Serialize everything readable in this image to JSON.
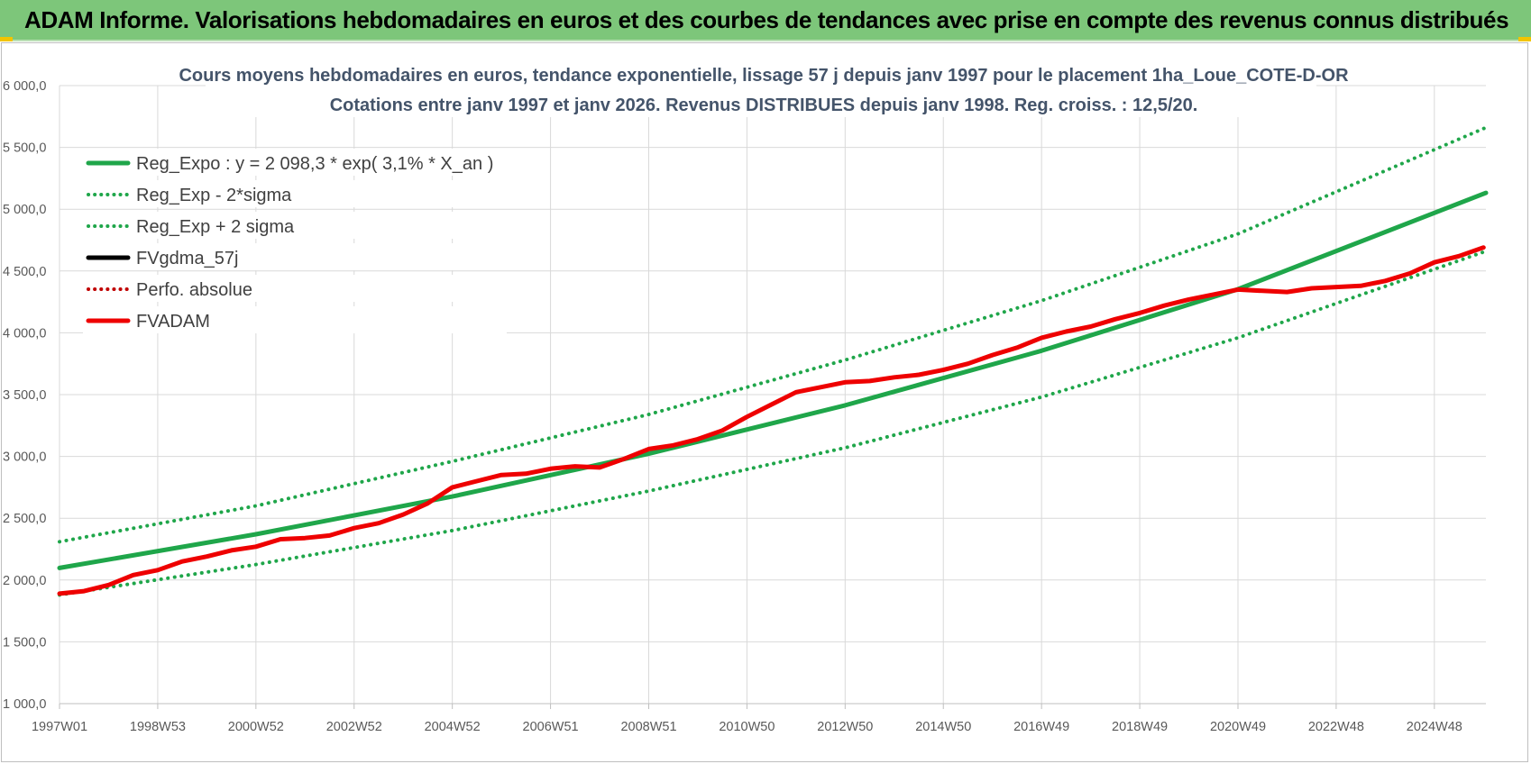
{
  "banner": {
    "title": "ADAM Informe. Valorisations hebdomadaires en euros et des courbes de tendances avec prise en compte des revenus connus distribués"
  },
  "colors": {
    "banner": "#7dc67a",
    "trend": "#1fa64a",
    "fv_adam": "#ee0000",
    "fvgdma": "#000000",
    "perfo": "#c00000",
    "title_text": "#44546a"
  },
  "chart_data": {
    "type": "line",
    "title": "Cours moyens hebdomadaires en euros, tendance exponentielle, lissage 57 j depuis janv 1997  pour le placement 1ha_Loue_COTE-D-OR",
    "subtitle": "Cotations entre janv 1997 et janv 2026. Revenus DISTRIBUES depuis janv 1998.  Reg. croiss. : 12,5/20.",
    "xlabel": "",
    "ylabel": "",
    "ylim": [
      1000,
      6000
    ],
    "xlim": [
      1997.0,
      2026.05
    ],
    "grid": true,
    "legend_position": "top-left",
    "x_ticks": [
      {
        "label": "1997W01",
        "x": 1997.0
      },
      {
        "label": "1998W53",
        "x": 1999.0
      },
      {
        "label": "2000W52",
        "x": 2001.0
      },
      {
        "label": "2002W52",
        "x": 2003.0
      },
      {
        "label": "2004W52",
        "x": 2005.0
      },
      {
        "label": "2006W51",
        "x": 2007.0
      },
      {
        "label": "2008W51",
        "x": 2009.0
      },
      {
        "label": "2010W50",
        "x": 2011.0
      },
      {
        "label": "2012W50",
        "x": 2013.0
      },
      {
        "label": "2014W50",
        "x": 2015.0
      },
      {
        "label": "2016W49",
        "x": 2017.0
      },
      {
        "label": "2018W49",
        "x": 2019.0
      },
      {
        "label": "2020W49",
        "x": 2021.0
      },
      {
        "label": "2022W48",
        "x": 2023.0
      },
      {
        "label": "2024W48",
        "x": 2025.0
      }
    ],
    "y_ticks": [
      {
        "label": "1 000,0",
        "v": 1000
      },
      {
        "label": "1 500,0",
        "v": 1500
      },
      {
        "label": "2 000,0",
        "v": 2000
      },
      {
        "label": "2 500,0",
        "v": 2500
      },
      {
        "label": "3 000,0",
        "v": 3000
      },
      {
        "label": "3 500,0",
        "v": 3500
      },
      {
        "label": "4 000,0",
        "v": 4000
      },
      {
        "label": "4 500,0",
        "v": 4500
      },
      {
        "label": "5 000,0",
        "v": 5000
      },
      {
        "label": "5 500,0",
        "v": 5500
      },
      {
        "label": "6 000,0",
        "v": 6000
      }
    ],
    "series": [
      {
        "name": "Reg_Expo : y = 2 098,3 * exp( 3,1% *  X_an )",
        "style": "solid",
        "color": "#1fa64a",
        "x": [
          1997.0,
          2001.0,
          2005.0,
          2009.0,
          2013.0,
          2017.0,
          2021.0,
          2026.05
        ],
        "y": [
          2098,
          2370,
          2676,
          3022,
          3413,
          3855,
          4353,
          5132
        ]
      },
      {
        "name": "Reg_Exp - 2*sigma",
        "style": "dotted",
        "color": "#1fa64a",
        "x": [
          1997.0,
          2001.0,
          2005.0,
          2009.0,
          2013.0,
          2017.0,
          2021.0,
          2026.05
        ],
        "y": [
          1880,
          2125,
          2400,
          2720,
          3070,
          3480,
          3960,
          4660
        ]
      },
      {
        "name": "Reg_Exp + 2 sigma",
        "style": "dotted",
        "color": "#1fa64a",
        "x": [
          1997.0,
          2001.0,
          2005.0,
          2009.0,
          2013.0,
          2017.0,
          2021.0,
          2026.05
        ],
        "y": [
          2310,
          2600,
          2960,
          3340,
          3780,
          4260,
          4800,
          5660
        ]
      },
      {
        "name": "FVgdma_57j",
        "style": "solid",
        "color": "#000000",
        "x": [
          1997.0,
          1997.5,
          1998.0,
          1998.5,
          1999.0,
          1999.5,
          2000.0,
          2000.5,
          2001.0,
          2001.5,
          2002.0,
          2002.5,
          2003.0,
          2003.5,
          2004.0,
          2004.5,
          2005.0,
          2005.5,
          2006.0,
          2006.5,
          2007.0,
          2007.5,
          2008.0,
          2008.5,
          2009.0,
          2009.5,
          2010.0,
          2010.5,
          2011.0,
          2011.5,
          2012.0,
          2012.5,
          2013.0,
          2013.5,
          2014.0,
          2014.5,
          2015.0,
          2015.5,
          2016.0,
          2016.5,
          2017.0,
          2017.5,
          2018.0,
          2018.5,
          2019.0,
          2019.5,
          2020.0,
          2020.5,
          2021.0,
          2021.5,
          2022.0,
          2022.5,
          2023.0,
          2023.5,
          2024.0,
          2024.5,
          2025.0,
          2025.5,
          2026.0
        ],
        "y": [
          1890,
          1910,
          1960,
          2040,
          2080,
          2150,
          2190,
          2240,
          2270,
          2330,
          2340,
          2360,
          2420,
          2460,
          2530,
          2620,
          2750,
          2800,
          2850,
          2860,
          2900,
          2920,
          2910,
          2980,
          3060,
          3090,
          3140,
          3210,
          3320,
          3420,
          3520,
          3560,
          3600,
          3610,
          3640,
          3660,
          3700,
          3750,
          3820,
          3880,
          3960,
          4010,
          4050,
          4110,
          4160,
          4220,
          4270,
          4310,
          4350,
          4340,
          4330,
          4360,
          4370,
          4380,
          4420,
          4480,
          4570,
          4620,
          4690
        ]
      },
      {
        "name": "Perfo. absolue",
        "style": "dotted",
        "color": "#c00000",
        "x": [
          1997.0,
          1997.5,
          1998.0,
          1998.5,
          1999.0,
          1999.5,
          2000.0,
          2000.5,
          2001.0,
          2001.5,
          2002.0,
          2002.5,
          2003.0,
          2003.5,
          2004.0,
          2004.5,
          2005.0,
          2005.5,
          2006.0,
          2006.5,
          2007.0,
          2007.5,
          2008.0,
          2008.5,
          2009.0,
          2009.5,
          2010.0,
          2010.5,
          2011.0,
          2011.5,
          2012.0,
          2012.5,
          2013.0,
          2013.5,
          2014.0,
          2014.5,
          2015.0,
          2015.5,
          2016.0,
          2016.5,
          2017.0,
          2017.5,
          2018.0,
          2018.5,
          2019.0,
          2019.5,
          2020.0,
          2020.5,
          2021.0,
          2021.5,
          2022.0,
          2022.5,
          2023.0,
          2023.5,
          2024.0,
          2024.5,
          2025.0,
          2025.5,
          2026.0
        ],
        "y": [
          1890,
          1910,
          1960,
          2040,
          2080,
          2150,
          2190,
          2240,
          2270,
          2330,
          2340,
          2360,
          2420,
          2460,
          2530,
          2620,
          2750,
          2800,
          2850,
          2860,
          2900,
          2920,
          2910,
          2980,
          3060,
          3090,
          3140,
          3210,
          3320,
          3420,
          3520,
          3560,
          3600,
          3610,
          3640,
          3660,
          3700,
          3750,
          3820,
          3880,
          3960,
          4010,
          4050,
          4110,
          4160,
          4220,
          4270,
          4310,
          4350,
          4340,
          4330,
          4360,
          4370,
          4380,
          4420,
          4480,
          4570,
          4620,
          4690
        ]
      },
      {
        "name": "FVADAM",
        "style": "solid",
        "color": "#ee0000",
        "x": [
          1997.0,
          1997.5,
          1998.0,
          1998.5,
          1999.0,
          1999.5,
          2000.0,
          2000.5,
          2001.0,
          2001.5,
          2002.0,
          2002.5,
          2003.0,
          2003.5,
          2004.0,
          2004.5,
          2005.0,
          2005.5,
          2006.0,
          2006.5,
          2007.0,
          2007.5,
          2008.0,
          2008.5,
          2009.0,
          2009.5,
          2010.0,
          2010.5,
          2011.0,
          2011.5,
          2012.0,
          2012.5,
          2013.0,
          2013.5,
          2014.0,
          2014.5,
          2015.0,
          2015.5,
          2016.0,
          2016.5,
          2017.0,
          2017.5,
          2018.0,
          2018.5,
          2019.0,
          2019.5,
          2020.0,
          2020.5,
          2021.0,
          2021.5,
          2022.0,
          2022.5,
          2023.0,
          2023.5,
          2024.0,
          2024.5,
          2025.0,
          2025.5,
          2026.0
        ],
        "y": [
          1890,
          1910,
          1960,
          2040,
          2080,
          2150,
          2190,
          2240,
          2270,
          2330,
          2340,
          2360,
          2420,
          2460,
          2530,
          2620,
          2750,
          2800,
          2850,
          2860,
          2900,
          2920,
          2910,
          2980,
          3060,
          3090,
          3140,
          3210,
          3320,
          3420,
          3520,
          3560,
          3600,
          3610,
          3640,
          3660,
          3700,
          3750,
          3820,
          3880,
          3960,
          4010,
          4050,
          4110,
          4160,
          4220,
          4270,
          4310,
          4350,
          4340,
          4330,
          4360,
          4370,
          4380,
          4420,
          4480,
          4570,
          4620,
          4690
        ]
      }
    ]
  }
}
